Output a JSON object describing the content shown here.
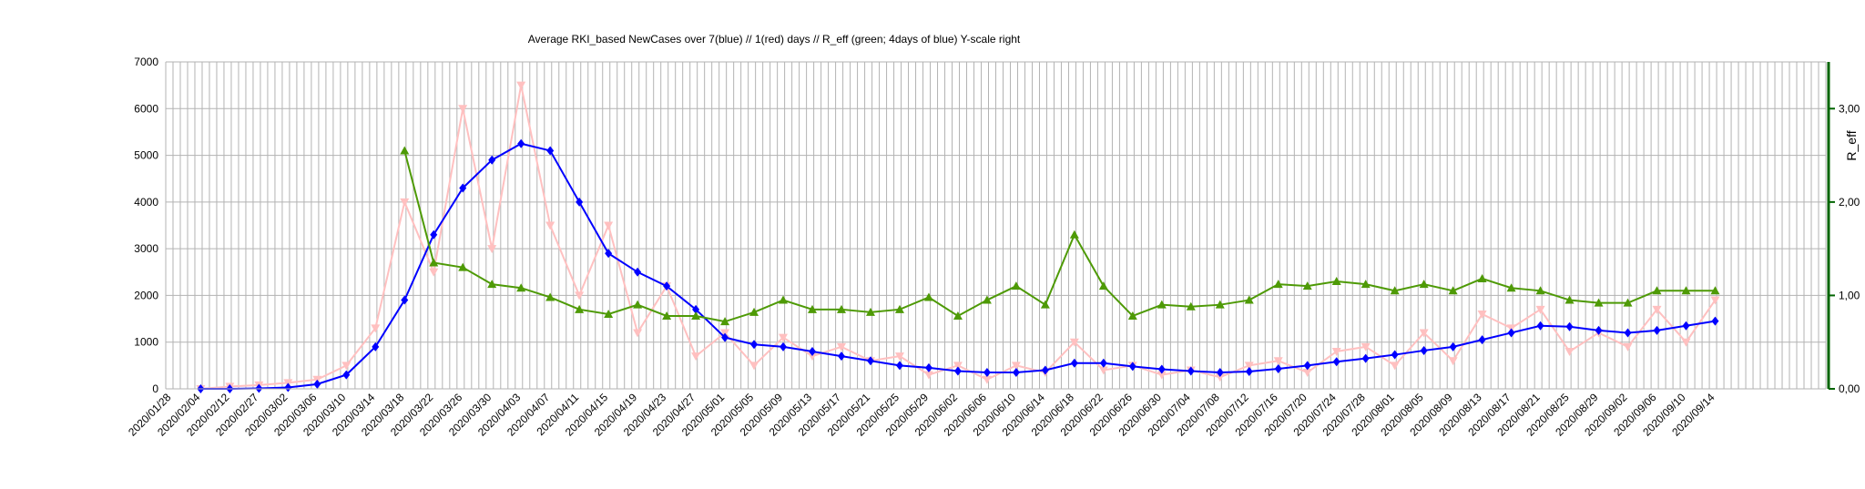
{
  "chart_data": {
    "type": "line",
    "title": "Average RKI_based NewCases over 7(blue) // 1(red) days //  R_eff (green; 4days of blue) Y-scale right",
    "y2label": "R_eff",
    "categories": [
      "2020/01/28",
      "2020/02/04",
      "2020/02/12",
      "2020/02/27",
      "2020/03/02",
      "2020/03/06",
      "2020/03/10",
      "2020/03/14",
      "2020/03/18",
      "2020/03/22",
      "2020/03/26",
      "2020/03/30",
      "2020/04/03",
      "2020/04/07",
      "2020/04/11",
      "2020/04/15",
      "2020/04/19",
      "2020/04/23",
      "2020/04/27",
      "2020/05/01",
      "2020/05/05",
      "2020/05/09",
      "2020/05/13",
      "2020/05/17",
      "2020/05/21",
      "2020/05/25",
      "2020/05/29",
      "2020/06/02",
      "2020/06/06",
      "2020/06/10",
      "2020/06/14",
      "2020/06/18",
      "2020/06/22",
      "2020/06/26",
      "2020/06/30",
      "2020/07/04",
      "2020/07/08",
      "2020/07/12",
      "2020/07/16",
      "2020/07/20",
      "2020/07/24",
      "2020/07/28",
      "2020/08/01",
      "2020/08/05",
      "2020/08/09",
      "2020/08/13",
      "2020/08/17",
      "2020/08/21",
      "2020/08/25",
      "2020/08/29",
      "2020/09/02",
      "2020/09/06",
      "2020/09/10",
      "2020/09/14",
      null,
      null,
      null
    ],
    "series": [
      {
        "color": "#ffc0c0",
        "marker": "triangle-down",
        "values": [
          null,
          0,
          50,
          80,
          130,
          200,
          500,
          1300,
          4000,
          2500,
          6000,
          3000,
          6500,
          3500,
          2000,
          3500,
          1200,
          2200,
          700,
          1200,
          500,
          1100,
          700,
          900,
          600,
          700,
          300,
          500,
          200,
          500,
          350,
          1000,
          400,
          500,
          300,
          400,
          250,
          500,
          600,
          350,
          800,
          900,
          500,
          1200,
          600,
          1600,
          1300,
          1700,
          800,
          1200,
          900,
          1700,
          1000,
          1900,
          null,
          null,
          null
        ]
      },
      {
        "color": "#0000ff",
        "marker": "diamond",
        "values": [
          null,
          0,
          0,
          10,
          30,
          100,
          300,
          900,
          1900,
          3300,
          4300,
          4900,
          5250,
          5100,
          4000,
          2900,
          2500,
          2200,
          1700,
          1100,
          950,
          900,
          800,
          700,
          600,
          500,
          450,
          380,
          350,
          350,
          400,
          550,
          550,
          480,
          420,
          380,
          350,
          370,
          430,
          500,
          580,
          650,
          730,
          820,
          900,
          1050,
          1200,
          1350,
          1330,
          1250,
          1200,
          1250,
          1350,
          1450,
          null,
          null,
          null
        ]
      },
      {
        "color": "#4e9a06",
        "marker": "triangle-up",
        "axis": "y2",
        "values": [
          null,
          null,
          null,
          null,
          null,
          null,
          null,
          null,
          2.55,
          1.35,
          1.3,
          1.12,
          1.08,
          0.98,
          0.85,
          0.8,
          0.9,
          0.78,
          0.78,
          0.72,
          0.82,
          0.95,
          0.85,
          0.85,
          0.82,
          0.85,
          0.98,
          0.78,
          0.95,
          1.1,
          0.9,
          1.65,
          1.1,
          0.78,
          0.9,
          0.88,
          0.9,
          0.95,
          1.12,
          1.1,
          1.15,
          1.12,
          1.05,
          1.12,
          1.05,
          1.18,
          1.08,
          1.05,
          0.95,
          0.92,
          0.92,
          1.05,
          1.05,
          1.05,
          null,
          null,
          null
        ]
      }
    ],
    "ylim": [
      0,
      7000
    ],
    "yticks": [
      0,
      1000,
      2000,
      3000,
      4000,
      5000,
      6000,
      7000
    ],
    "y2lim": [
      0,
      3.5
    ],
    "y2ticks": [
      {
        "value": 0,
        "label": "0,00"
      },
      {
        "value": 1,
        "label": "1,00"
      },
      {
        "value": 2,
        "label": "2,00"
      },
      {
        "value": 3,
        "label": "3,00"
      }
    ],
    "grid": true
  }
}
